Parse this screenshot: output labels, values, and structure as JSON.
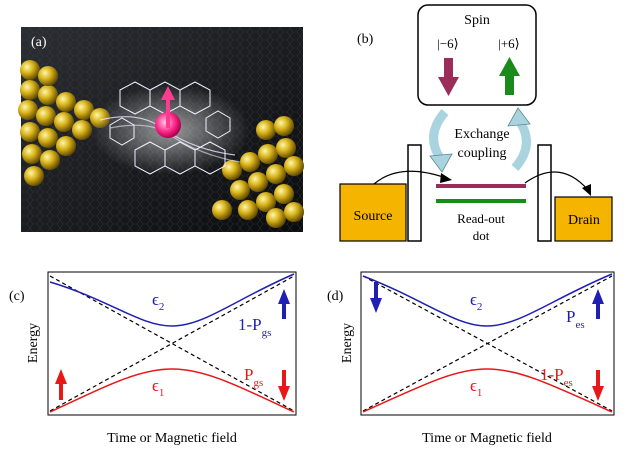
{
  "panel_a": {
    "label": "(a)"
  },
  "panel_b": {
    "label": "(b)",
    "spin_title": "Spin",
    "spin_minus": "|−6⟩",
    "spin_plus": "|+6⟩",
    "coupling_line1": "Exchange",
    "coupling_line2": "coupling",
    "source": "Source",
    "drain": "Drain",
    "readout_line1": "Read-out",
    "readout_line2": "dot",
    "colors": {
      "source_fill": "#f5b400",
      "level_upper": "#9b2d5a",
      "level_lower": "#1a8a1a",
      "arrow_minus": "#9b2d5a",
      "arrow_plus": "#1a8a1a",
      "coupling_arrow": "#a9d4df"
    }
  },
  "panel_c": {
    "label": "(c)",
    "ylabel": "Energy",
    "xlabel": "Time or Magnetic field",
    "eps_upper": "ϵ",
    "eps_upper_sub": "2",
    "eps_lower": "ϵ",
    "eps_lower_sub": "1",
    "prob_upper": "1-P",
    "prob_upper_sub": "gs",
    "prob_lower": "P",
    "prob_lower_sub": "gs"
  },
  "panel_d": {
    "label": "(d)",
    "ylabel": "Energy",
    "xlabel": "Time or Magnetic field",
    "eps_upper": "ϵ",
    "eps_upper_sub": "2",
    "eps_lower": "ϵ",
    "eps_lower_sub": "1",
    "prob_upper": "P",
    "prob_upper_sub": "es",
    "prob_lower": "1-P",
    "prob_lower_sub": "es"
  },
  "colors": {
    "upper_curve": "#1f1fb4",
    "lower_curve": "#e81818",
    "diabatic": "#000000"
  }
}
